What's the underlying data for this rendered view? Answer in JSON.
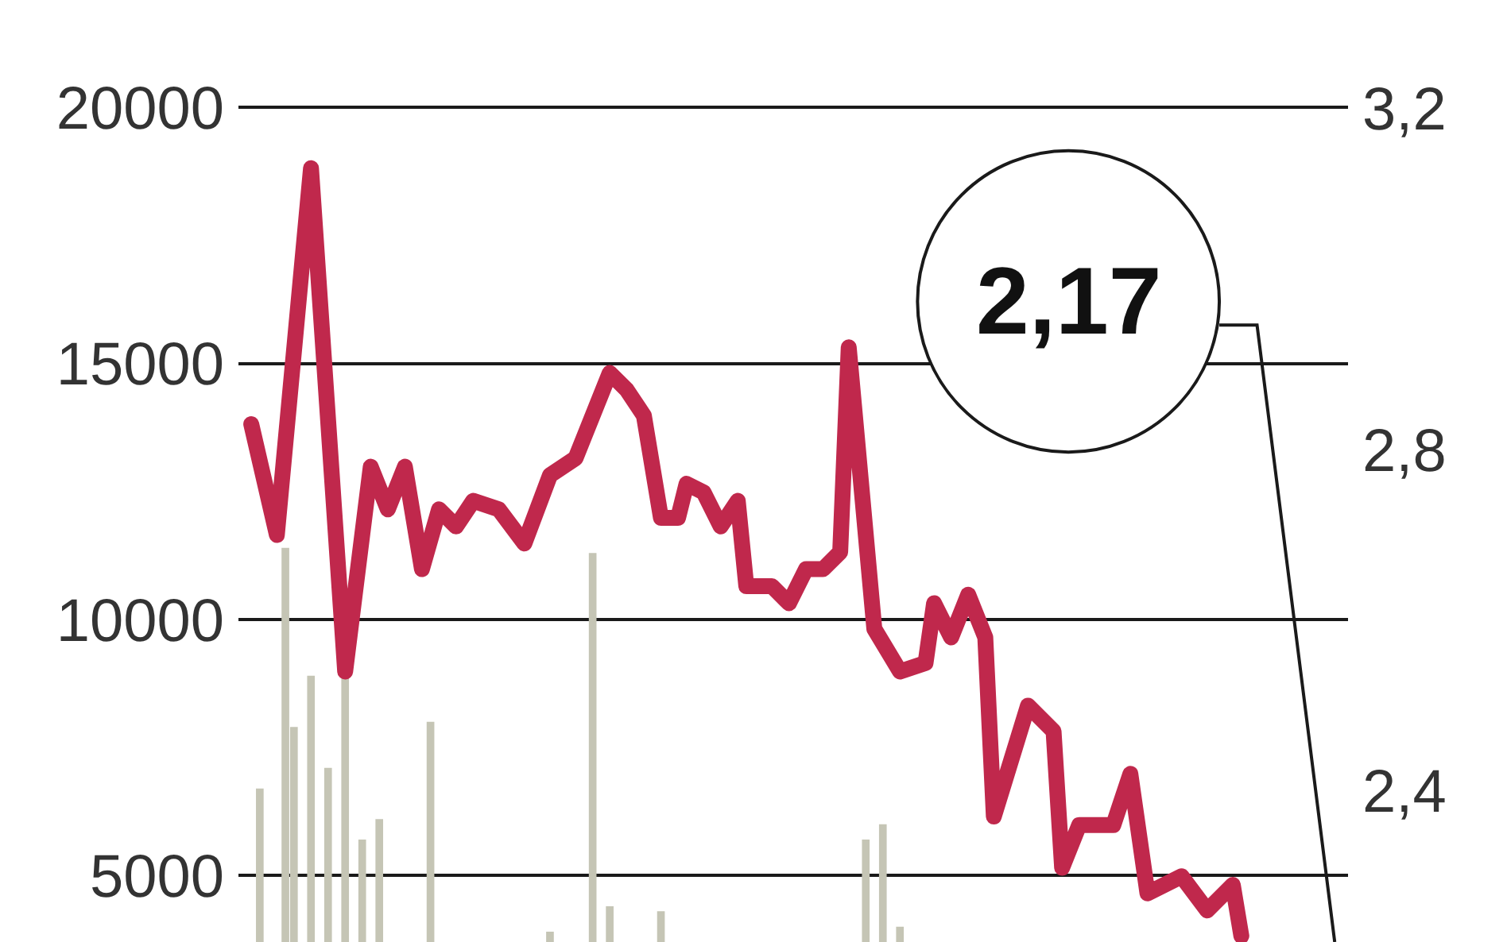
{
  "chart_data": {
    "type": "bar",
    "categories": [
      null,
      null,
      null,
      null,
      null,
      null,
      null,
      null,
      null,
      null,
      null,
      null,
      null,
      null,
      null,
      null,
      null,
      null,
      null,
      null,
      null,
      null,
      null,
      null,
      null,
      null,
      null,
      null,
      null,
      null,
      null,
      null,
      null,
      null,
      null,
      null,
      null,
      null,
      null,
      null,
      null,
      null,
      null,
      null,
      null,
      null,
      null,
      null,
      null,
      null,
      null,
      null,
      null,
      null,
      null,
      null,
      null,
      null,
      null,
      null,
      null,
      null,
      null,
      null,
      null,
      null,
      null,
      null,
      null,
      null,
      null,
      null,
      null,
      null,
      null,
      null,
      null,
      null,
      null,
      null,
      null,
      null,
      null,
      null,
      null,
      null,
      null,
      null,
      null,
      null,
      null,
      null,
      null,
      null,
      null,
      null,
      null,
      null,
      null,
      null,
      null,
      null,
      null,
      null,
      null,
      null,
      null,
      null,
      null,
      null,
      null,
      null,
      null,
      null,
      null,
      null,
      null,
      null,
      null,
      null,
      null,
      null,
      null,
      null,
      null,
      null,
      null,
      null,
      null,
      null
    ],
    "series": [
      {
        "axis": "y",
        "color": "#c5c5b5",
        "values": [
          null,
          null,
          6700,
          null,
          null,
          11400,
          7900,
          null,
          8900,
          null,
          7100,
          null,
          8900,
          null,
          5700,
          null,
          6100,
          null,
          null,
          null,
          null,
          null,
          8000,
          null,
          null,
          null,
          null,
          null,
          null,
          null,
          null,
          null,
          null,
          null,
          null,
          null,
          3900,
          null,
          null,
          null,
          null,
          11300,
          null,
          4400,
          null,
          null,
          null,
          null,
          null,
          4300,
          null,
          null,
          null,
          null,
          null,
          null,
          null,
          null,
          null,
          null,
          null,
          null,
          null,
          null,
          null,
          null,
          null,
          null,
          null,
          null,
          null,
          null,
          null,
          5700,
          null,
          6000,
          null,
          4000,
          null,
          null,
          null,
          null,
          null,
          null,
          null,
          null,
          null,
          null,
          null,
          null,
          null,
          null,
          null,
          null,
          null,
          null,
          null,
          null,
          null,
          null,
          null,
          null,
          null,
          null,
          null,
          null,
          null,
          null,
          null,
          null,
          null,
          null,
          null,
          null,
          null,
          null,
          null,
          null,
          null,
          null,
          null,
          null,
          null,
          null,
          null,
          null,
          null,
          null,
          null,
          null
        ]
      },
      {
        "type": "line",
        "axis": "y2",
        "color": "#c0284c",
        "values": [
          null,
          2.83,
          null,
          null,
          2.7,
          null,
          null,
          null,
          3.13,
          null,
          null,
          null,
          2.54,
          null,
          null,
          2.78,
          null,
          2.73,
          null,
          2.78,
          null,
          2.66,
          null,
          2.73,
          null,
          2.71,
          null,
          2.74,
          null,
          null,
          2.73,
          null,
          null,
          2.69,
          null,
          null,
          2.77,
          null,
          null,
          2.79,
          null,
          null,
          null,
          2.89,
          null,
          2.87,
          null,
          2.84,
          null,
          2.72,
          null,
          2.72,
          2.76,
          null,
          2.75,
          null,
          2.71,
          null,
          2.74,
          2.64,
          null,
          null,
          2.64,
          null,
          2.62,
          null,
          2.66,
          null,
          2.66,
          null,
          2.68,
          2.92,
          null,
          null,
          2.59,
          null,
          null,
          2.54,
          null,
          null,
          2.55,
          2.62,
          null,
          2.58,
          null,
          2.63,
          null,
          2.58,
          2.37,
          null,
          null,
          null,
          2.5,
          null,
          null,
          2.47,
          2.31,
          null,
          2.36,
          null,
          null,
          null,
          2.36,
          null,
          2.42,
          null,
          2.28,
          null,
          null,
          null,
          2.3,
          null,
          null,
          2.26,
          null,
          null,
          2.29,
          2.23,
          null,
          null,
          null,
          null,
          null,
          null,
          null,
          null,
          null,
          null,
          null,
          null
        ]
      }
    ],
    "ylim": [
      3700,
      22100
    ],
    "yticks": [
      5000,
      10000,
      15000,
      20000
    ],
    "y2lim": [
      2.223,
      3.327
    ],
    "y2ticks": [
      {
        "value": 2.4,
        "label": "2,4"
      },
      {
        "value": 2.8,
        "label": "2,8"
      },
      {
        "value": 3.2,
        "label": "3,2"
      }
    ],
    "grid": "y",
    "legend": false,
    "annotations": [
      "2,17"
    ]
  }
}
